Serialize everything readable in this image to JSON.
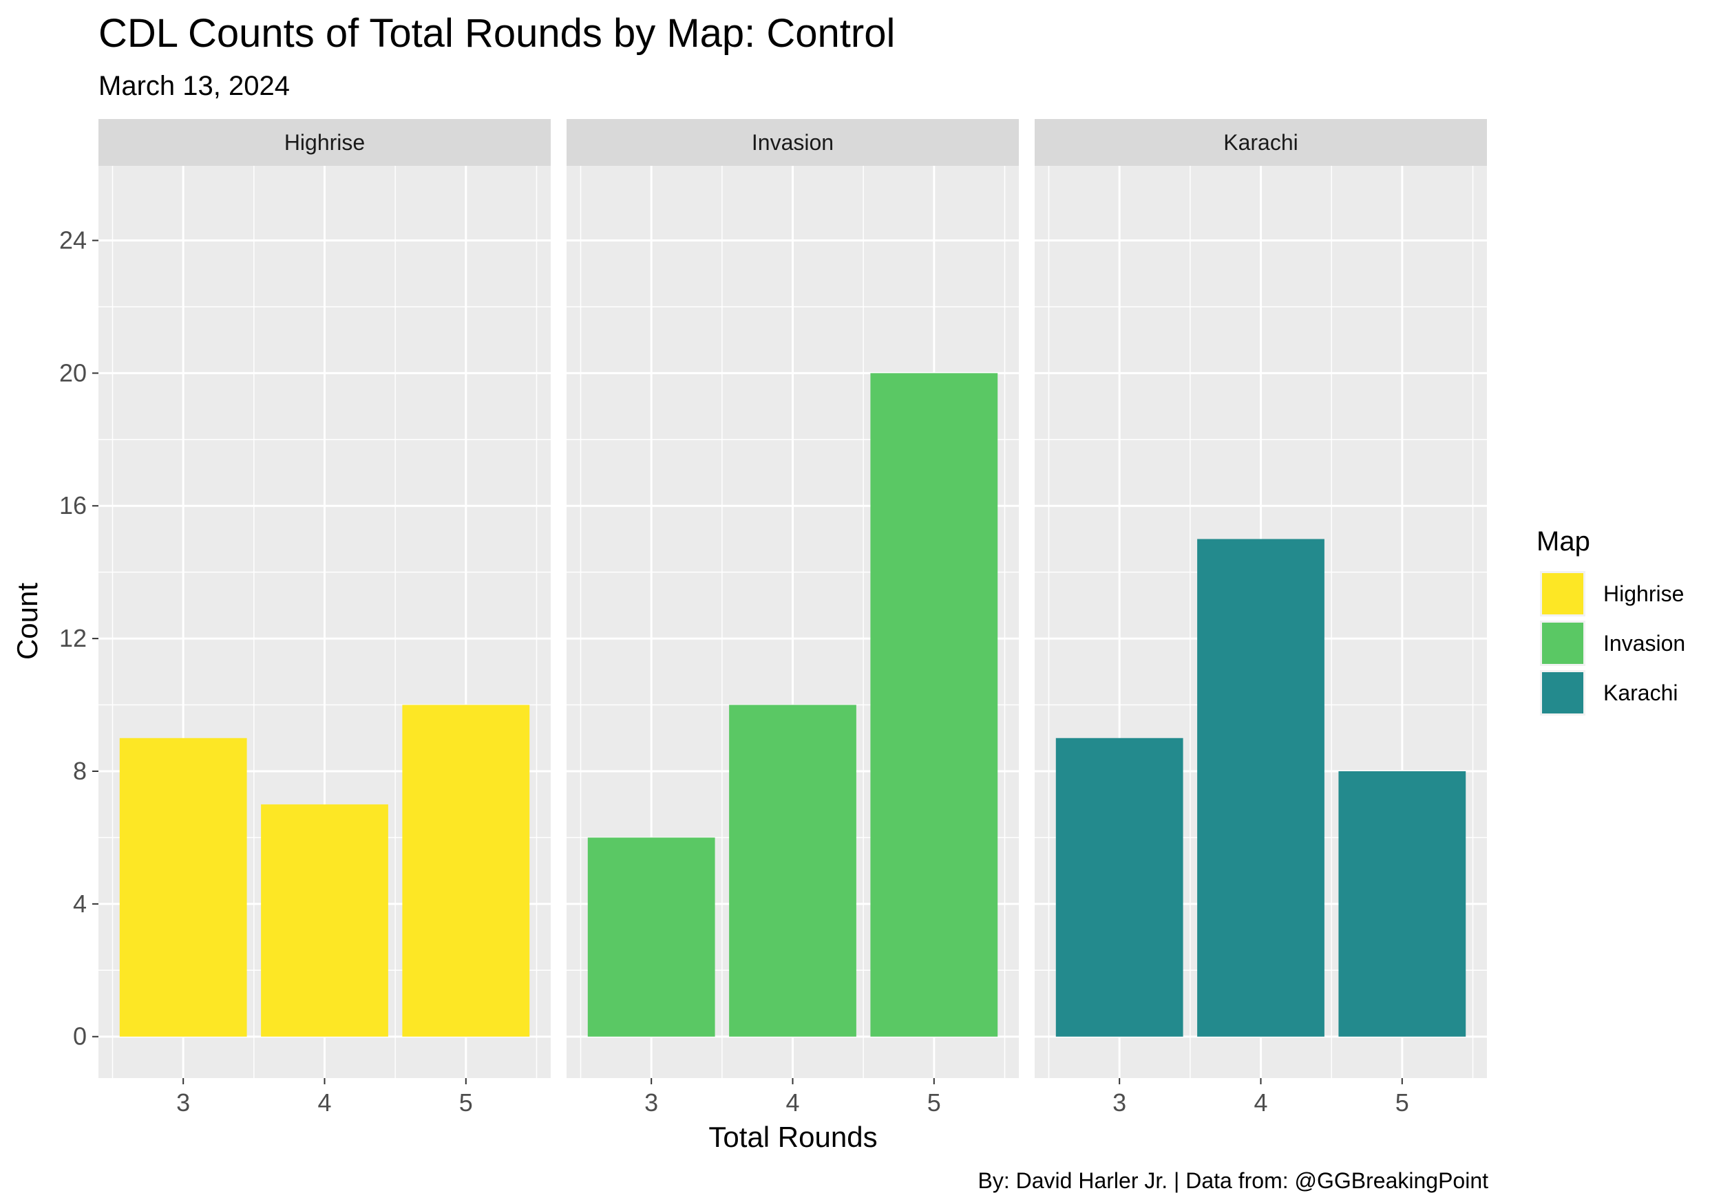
{
  "chart_data": {
    "type": "bar",
    "title": "CDL Counts of Total Rounds by Map: Control",
    "subtitle": "March 13, 2024",
    "caption": "By: David Harler Jr. | Data from: @GGBreakingPoint",
    "xlabel": "Total Rounds",
    "ylabel": "Count",
    "categories": [
      "3",
      "4",
      "5"
    ],
    "yticks": [
      0,
      4,
      8,
      12,
      16,
      20,
      24
    ],
    "ylim": [
      -1.25,
      26.25
    ],
    "grid": true,
    "facets": [
      {
        "name": "Highrise",
        "color": "#FDE725",
        "values": [
          9,
          7,
          10
        ]
      },
      {
        "name": "Invasion",
        "color": "#5AC864",
        "values": [
          6,
          10,
          20
        ]
      },
      {
        "name": "Karachi",
        "color": "#238A8D",
        "values": [
          9,
          15,
          8
        ]
      }
    ],
    "legend": {
      "title": "Map",
      "position": "right",
      "items": [
        "Highrise",
        "Invasion",
        "Karachi"
      ]
    }
  }
}
